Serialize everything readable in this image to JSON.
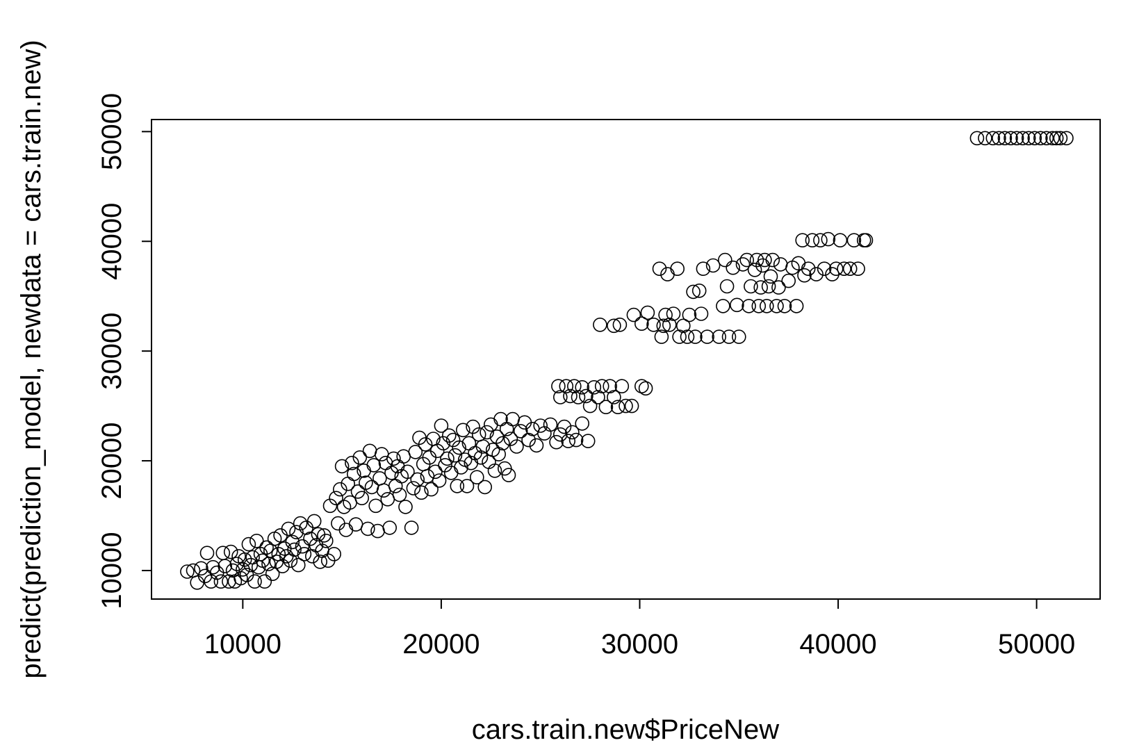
{
  "chart_data": {
    "type": "scatter",
    "title": "",
    "xlabel": "cars.train.new$PriceNew",
    "ylabel": "predict(prediction_model, newdata = cars.train.new)",
    "xlim": [
      5400,
      53200
    ],
    "ylim": [
      7400,
      51100
    ],
    "x_ticks": [
      10000,
      20000,
      30000,
      40000,
      50000
    ],
    "y_ticks": [
      10000,
      20000,
      30000,
      40000,
      50000
    ],
    "x_tick_labels": [
      "10000",
      "20000",
      "30000",
      "40000",
      "50000"
    ],
    "y_tick_labels": [
      "10000",
      "20000",
      "30000",
      "40000",
      "50000"
    ],
    "marker": "open-circle",
    "grid": false,
    "legend": "none",
    "points": [
      [
        7200,
        9900
      ],
      [
        7500,
        10000
      ],
      [
        7700,
        8900
      ],
      [
        7900,
        10200
      ],
      [
        8100,
        9500
      ],
      [
        8200,
        11600
      ],
      [
        8400,
        9000
      ],
      [
        8500,
        10300
      ],
      [
        8700,
        9800
      ],
      [
        8900,
        9000
      ],
      [
        9000,
        11600
      ],
      [
        9100,
        10400
      ],
      [
        9300,
        9000
      ],
      [
        9400,
        11700
      ],
      [
        9500,
        10000
      ],
      [
        9600,
        9000
      ],
      [
        9700,
        10600
      ],
      [
        9800,
        11300
      ],
      [
        9900,
        9300
      ],
      [
        10000,
        10100
      ],
      [
        10100,
        11000
      ],
      [
        10200,
        9600
      ],
      [
        10300,
        12400
      ],
      [
        10400,
        10500
      ],
      [
        10500,
        11200
      ],
      [
        10600,
        9000
      ],
      [
        10700,
        12700
      ],
      [
        10800,
        10300
      ],
      [
        10900,
        11500
      ],
      [
        11000,
        10900
      ],
      [
        11100,
        9000
      ],
      [
        11200,
        12100
      ],
      [
        11300,
        10600
      ],
      [
        11400,
        11800
      ],
      [
        11500,
        9700
      ],
      [
        11600,
        12900
      ],
      [
        11700,
        10800
      ],
      [
        11800,
        11500
      ],
      [
        11900,
        13200
      ],
      [
        12000,
        10400
      ],
      [
        12100,
        12000
      ],
      [
        12200,
        11300
      ],
      [
        12300,
        13800
      ],
      [
        12400,
        10900
      ],
      [
        12500,
        12600
      ],
      [
        12600,
        11900
      ],
      [
        12700,
        13500
      ],
      [
        12800,
        10500
      ],
      [
        12900,
        14300
      ],
      [
        13000,
        12200
      ],
      [
        13100,
        11500
      ],
      [
        13200,
        13900
      ],
      [
        13400,
        12900
      ],
      [
        13500,
        11300
      ],
      [
        13600,
        14500
      ],
      [
        13700,
        12300
      ],
      [
        13800,
        13300
      ],
      [
        13900,
        10800
      ],
      [
        14000,
        11800
      ],
      [
        14100,
        13200
      ],
      [
        14200,
        12700
      ],
      [
        14300,
        10900
      ],
      [
        14400,
        15900
      ],
      [
        14600,
        11500
      ],
      [
        14700,
        16600
      ],
      [
        14800,
        14300
      ],
      [
        14900,
        17400
      ],
      [
        15000,
        19500
      ],
      [
        15100,
        15800
      ],
      [
        15200,
        13700
      ],
      [
        15300,
        17900
      ],
      [
        15400,
        16200
      ],
      [
        15500,
        19800
      ],
      [
        15600,
        18800
      ],
      [
        15700,
        14200
      ],
      [
        15800,
        17200
      ],
      [
        15900,
        20300
      ],
      [
        16000,
        16600
      ],
      [
        16100,
        19100
      ],
      [
        16200,
        18000
      ],
      [
        16300,
        13800
      ],
      [
        16400,
        20900
      ],
      [
        16500,
        17600
      ],
      [
        16600,
        19600
      ],
      [
        16700,
        15900
      ],
      [
        16800,
        13600
      ],
      [
        16900,
        18400
      ],
      [
        17000,
        20600
      ],
      [
        17100,
        17300
      ],
      [
        17200,
        19800
      ],
      [
        17300,
        16500
      ],
      [
        17400,
        13900
      ],
      [
        17500,
        18900
      ],
      [
        17600,
        20200
      ],
      [
        17700,
        17700
      ],
      [
        17800,
        19500
      ],
      [
        17900,
        16900
      ],
      [
        18000,
        18600
      ],
      [
        18100,
        20400
      ],
      [
        18200,
        15800
      ],
      [
        18300,
        19000
      ],
      [
        18500,
        13900
      ],
      [
        18600,
        17500
      ],
      [
        18700,
        20800
      ],
      [
        18800,
        18300
      ],
      [
        18900,
        22100
      ],
      [
        19000,
        17100
      ],
      [
        19100,
        19700
      ],
      [
        19200,
        21500
      ],
      [
        19300,
        18600
      ],
      [
        19400,
        20300
      ],
      [
        19500,
        17400
      ],
      [
        19600,
        22000
      ],
      [
        19700,
        19000
      ],
      [
        19800,
        20900
      ],
      [
        19900,
        18200
      ],
      [
        20000,
        23200
      ],
      [
        20100,
        21600
      ],
      [
        20200,
        19600
      ],
      [
        20300,
        20200
      ],
      [
        20400,
        22300
      ],
      [
        20500,
        18900
      ],
      [
        20600,
        21900
      ],
      [
        20700,
        20500
      ],
      [
        20800,
        17700
      ],
      [
        20900,
        21200
      ],
      [
        21000,
        19400
      ],
      [
        21100,
        22800
      ],
      [
        21200,
        20100
      ],
      [
        21300,
        17700
      ],
      [
        21400,
        21600
      ],
      [
        21500,
        19800
      ],
      [
        21600,
        23100
      ],
      [
        21700,
        20700
      ],
      [
        21800,
        18500
      ],
      [
        21900,
        22400
      ],
      [
        22000,
        20300
      ],
      [
        22100,
        21300
      ],
      [
        22200,
        17600
      ],
      [
        22300,
        22600
      ],
      [
        22400,
        19900
      ],
      [
        22500,
        23300
      ],
      [
        22600,
        21000
      ],
      [
        22700,
        19100
      ],
      [
        22800,
        22200
      ],
      [
        22900,
        20600
      ],
      [
        23000,
        23800
      ],
      [
        23100,
        21600
      ],
      [
        23200,
        19300
      ],
      [
        23300,
        22900
      ],
      [
        23400,
        18700
      ],
      [
        23500,
        22000
      ],
      [
        23600,
        23800
      ],
      [
        23800,
        21300
      ],
      [
        24000,
        22700
      ],
      [
        24200,
        23500
      ],
      [
        24400,
        21900
      ],
      [
        24600,
        22900
      ],
      [
        24800,
        21400
      ],
      [
        25000,
        23200
      ],
      [
        25200,
        22500
      ],
      [
        25500,
        23300
      ],
      [
        25800,
        21700
      ],
      [
        26000,
        22400
      ],
      [
        26200,
        23100
      ],
      [
        26400,
        21800
      ],
      [
        26600,
        22600
      ],
      [
        26800,
        21900
      ],
      [
        27100,
        23400
      ],
      [
        27400,
        21800
      ],
      [
        25900,
        26800
      ],
      [
        26000,
        25800
      ],
      [
        26300,
        26800
      ],
      [
        26500,
        25900
      ],
      [
        26700,
        26800
      ],
      [
        26900,
        25800
      ],
      [
        27100,
        26700
      ],
      [
        27300,
        25900
      ],
      [
        27500,
        25000
      ],
      [
        27700,
        26700
      ],
      [
        27900,
        25800
      ],
      [
        28100,
        26800
      ],
      [
        28300,
        24900
      ],
      [
        28500,
        26800
      ],
      [
        28700,
        25800
      ],
      [
        28900,
        24900
      ],
      [
        29100,
        26800
      ],
      [
        29300,
        25000
      ],
      [
        29600,
        25000
      ],
      [
        30100,
        26800
      ],
      [
        30300,
        26600
      ],
      [
        28000,
        32400
      ],
      [
        28700,
        32300
      ],
      [
        29000,
        32400
      ],
      [
        29700,
        33300
      ],
      [
        30100,
        32500
      ],
      [
        30400,
        33500
      ],
      [
        30700,
        32400
      ],
      [
        31000,
        37500
      ],
      [
        31100,
        31300
      ],
      [
        31200,
        32300
      ],
      [
        31300,
        33300
      ],
      [
        31400,
        37000
      ],
      [
        31500,
        32400
      ],
      [
        31700,
        33400
      ],
      [
        31900,
        37500
      ],
      [
        32000,
        31300
      ],
      [
        32200,
        32300
      ],
      [
        32400,
        31300
      ],
      [
        32500,
        33300
      ],
      [
        32700,
        35400
      ],
      [
        32800,
        31300
      ],
      [
        33000,
        35500
      ],
      [
        33100,
        33400
      ],
      [
        33200,
        37500
      ],
      [
        33400,
        31300
      ],
      [
        33700,
        37800
      ],
      [
        34000,
        31300
      ],
      [
        34200,
        34100
      ],
      [
        34300,
        38300
      ],
      [
        34400,
        35900
      ],
      [
        34500,
        31300
      ],
      [
        34700,
        37600
      ],
      [
        34900,
        34200
      ],
      [
        35000,
        31300
      ],
      [
        35200,
        37900
      ],
      [
        35400,
        38300
      ],
      [
        35500,
        34100
      ],
      [
        35600,
        35900
      ],
      [
        35800,
        37400
      ],
      [
        35900,
        38300
      ],
      [
        36000,
        34100
      ],
      [
        36100,
        35800
      ],
      [
        36200,
        37800
      ],
      [
        36300,
        38300
      ],
      [
        36400,
        34100
      ],
      [
        36500,
        35900
      ],
      [
        36600,
        36800
      ],
      [
        36700,
        38300
      ],
      [
        36900,
        34100
      ],
      [
        37000,
        35800
      ],
      [
        37100,
        37900
      ],
      [
        37300,
        34100
      ],
      [
        37500,
        36400
      ],
      [
        37700,
        37600
      ],
      [
        37900,
        34100
      ],
      [
        38000,
        38000
      ],
      [
        38200,
        40100
      ],
      [
        38300,
        36900
      ],
      [
        38500,
        37500
      ],
      [
        38700,
        40100
      ],
      [
        38900,
        37000
      ],
      [
        39100,
        40100
      ],
      [
        39300,
        37500
      ],
      [
        39500,
        40200
      ],
      [
        39700,
        37000
      ],
      [
        39900,
        37500
      ],
      [
        40100,
        40100
      ],
      [
        40300,
        37500
      ],
      [
        40600,
        37500
      ],
      [
        40800,
        40100
      ],
      [
        41000,
        37500
      ],
      [
        41300,
        40100
      ],
      [
        41400,
        40100
      ],
      [
        47000,
        49400
      ],
      [
        47400,
        49400
      ],
      [
        47800,
        49400
      ],
      [
        48100,
        49400
      ],
      [
        48400,
        49400
      ],
      [
        48700,
        49400
      ],
      [
        49000,
        49400
      ],
      [
        49300,
        49400
      ],
      [
        49600,
        49400
      ],
      [
        49900,
        49400
      ],
      [
        50200,
        49400
      ],
      [
        50500,
        49400
      ],
      [
        50800,
        49400
      ],
      [
        51000,
        49400
      ],
      [
        51200,
        49400
      ],
      [
        51500,
        49400
      ]
    ]
  }
}
